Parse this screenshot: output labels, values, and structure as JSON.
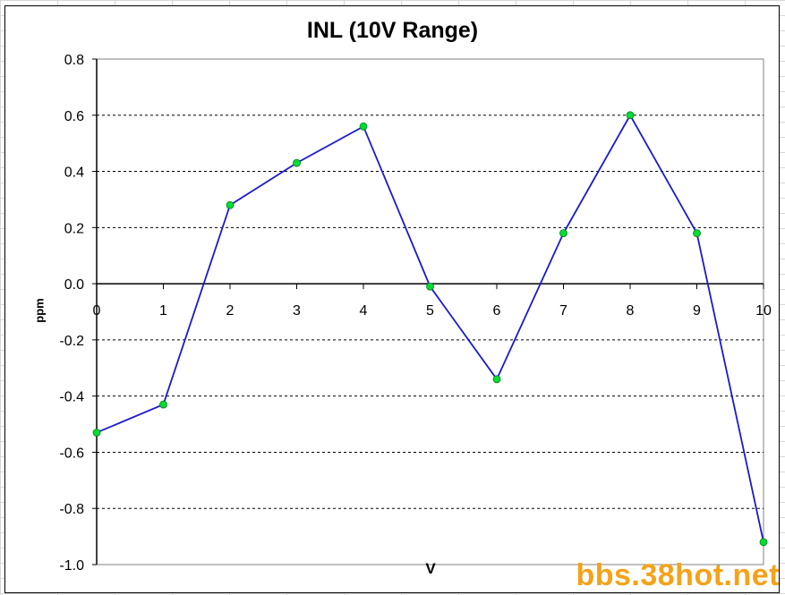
{
  "chart_data": {
    "type": "line",
    "title": "INL (10V Range)",
    "xlabel": "V",
    "ylabel": "ppm",
    "x": [
      0,
      1,
      2,
      3,
      4,
      5,
      6,
      7,
      8,
      9,
      10
    ],
    "series": [
      {
        "values": [
          -0.53,
          -0.43,
          0.28,
          0.43,
          0.56,
          -0.01,
          -0.34,
          0.18,
          0.6,
          0.18,
          -0.92
        ]
      }
    ],
    "xlim": [
      0,
      10
    ],
    "ylim": [
      -1.0,
      0.8
    ],
    "x_ticks": [
      "0",
      "1",
      "2",
      "3",
      "4",
      "5",
      "6",
      "7",
      "8",
      "9",
      "10"
    ],
    "y_ticks": [
      "0.8",
      "0.6",
      "0.4",
      "0.2",
      "0.0",
      "-0.2",
      "-0.4",
      "-0.6",
      "-0.8",
      "-1.0"
    ],
    "grid": "horizontal dashed",
    "line_color": "#1a1acc",
    "marker_color": "#00dd33"
  },
  "watermark": "bbs.38hot.net"
}
